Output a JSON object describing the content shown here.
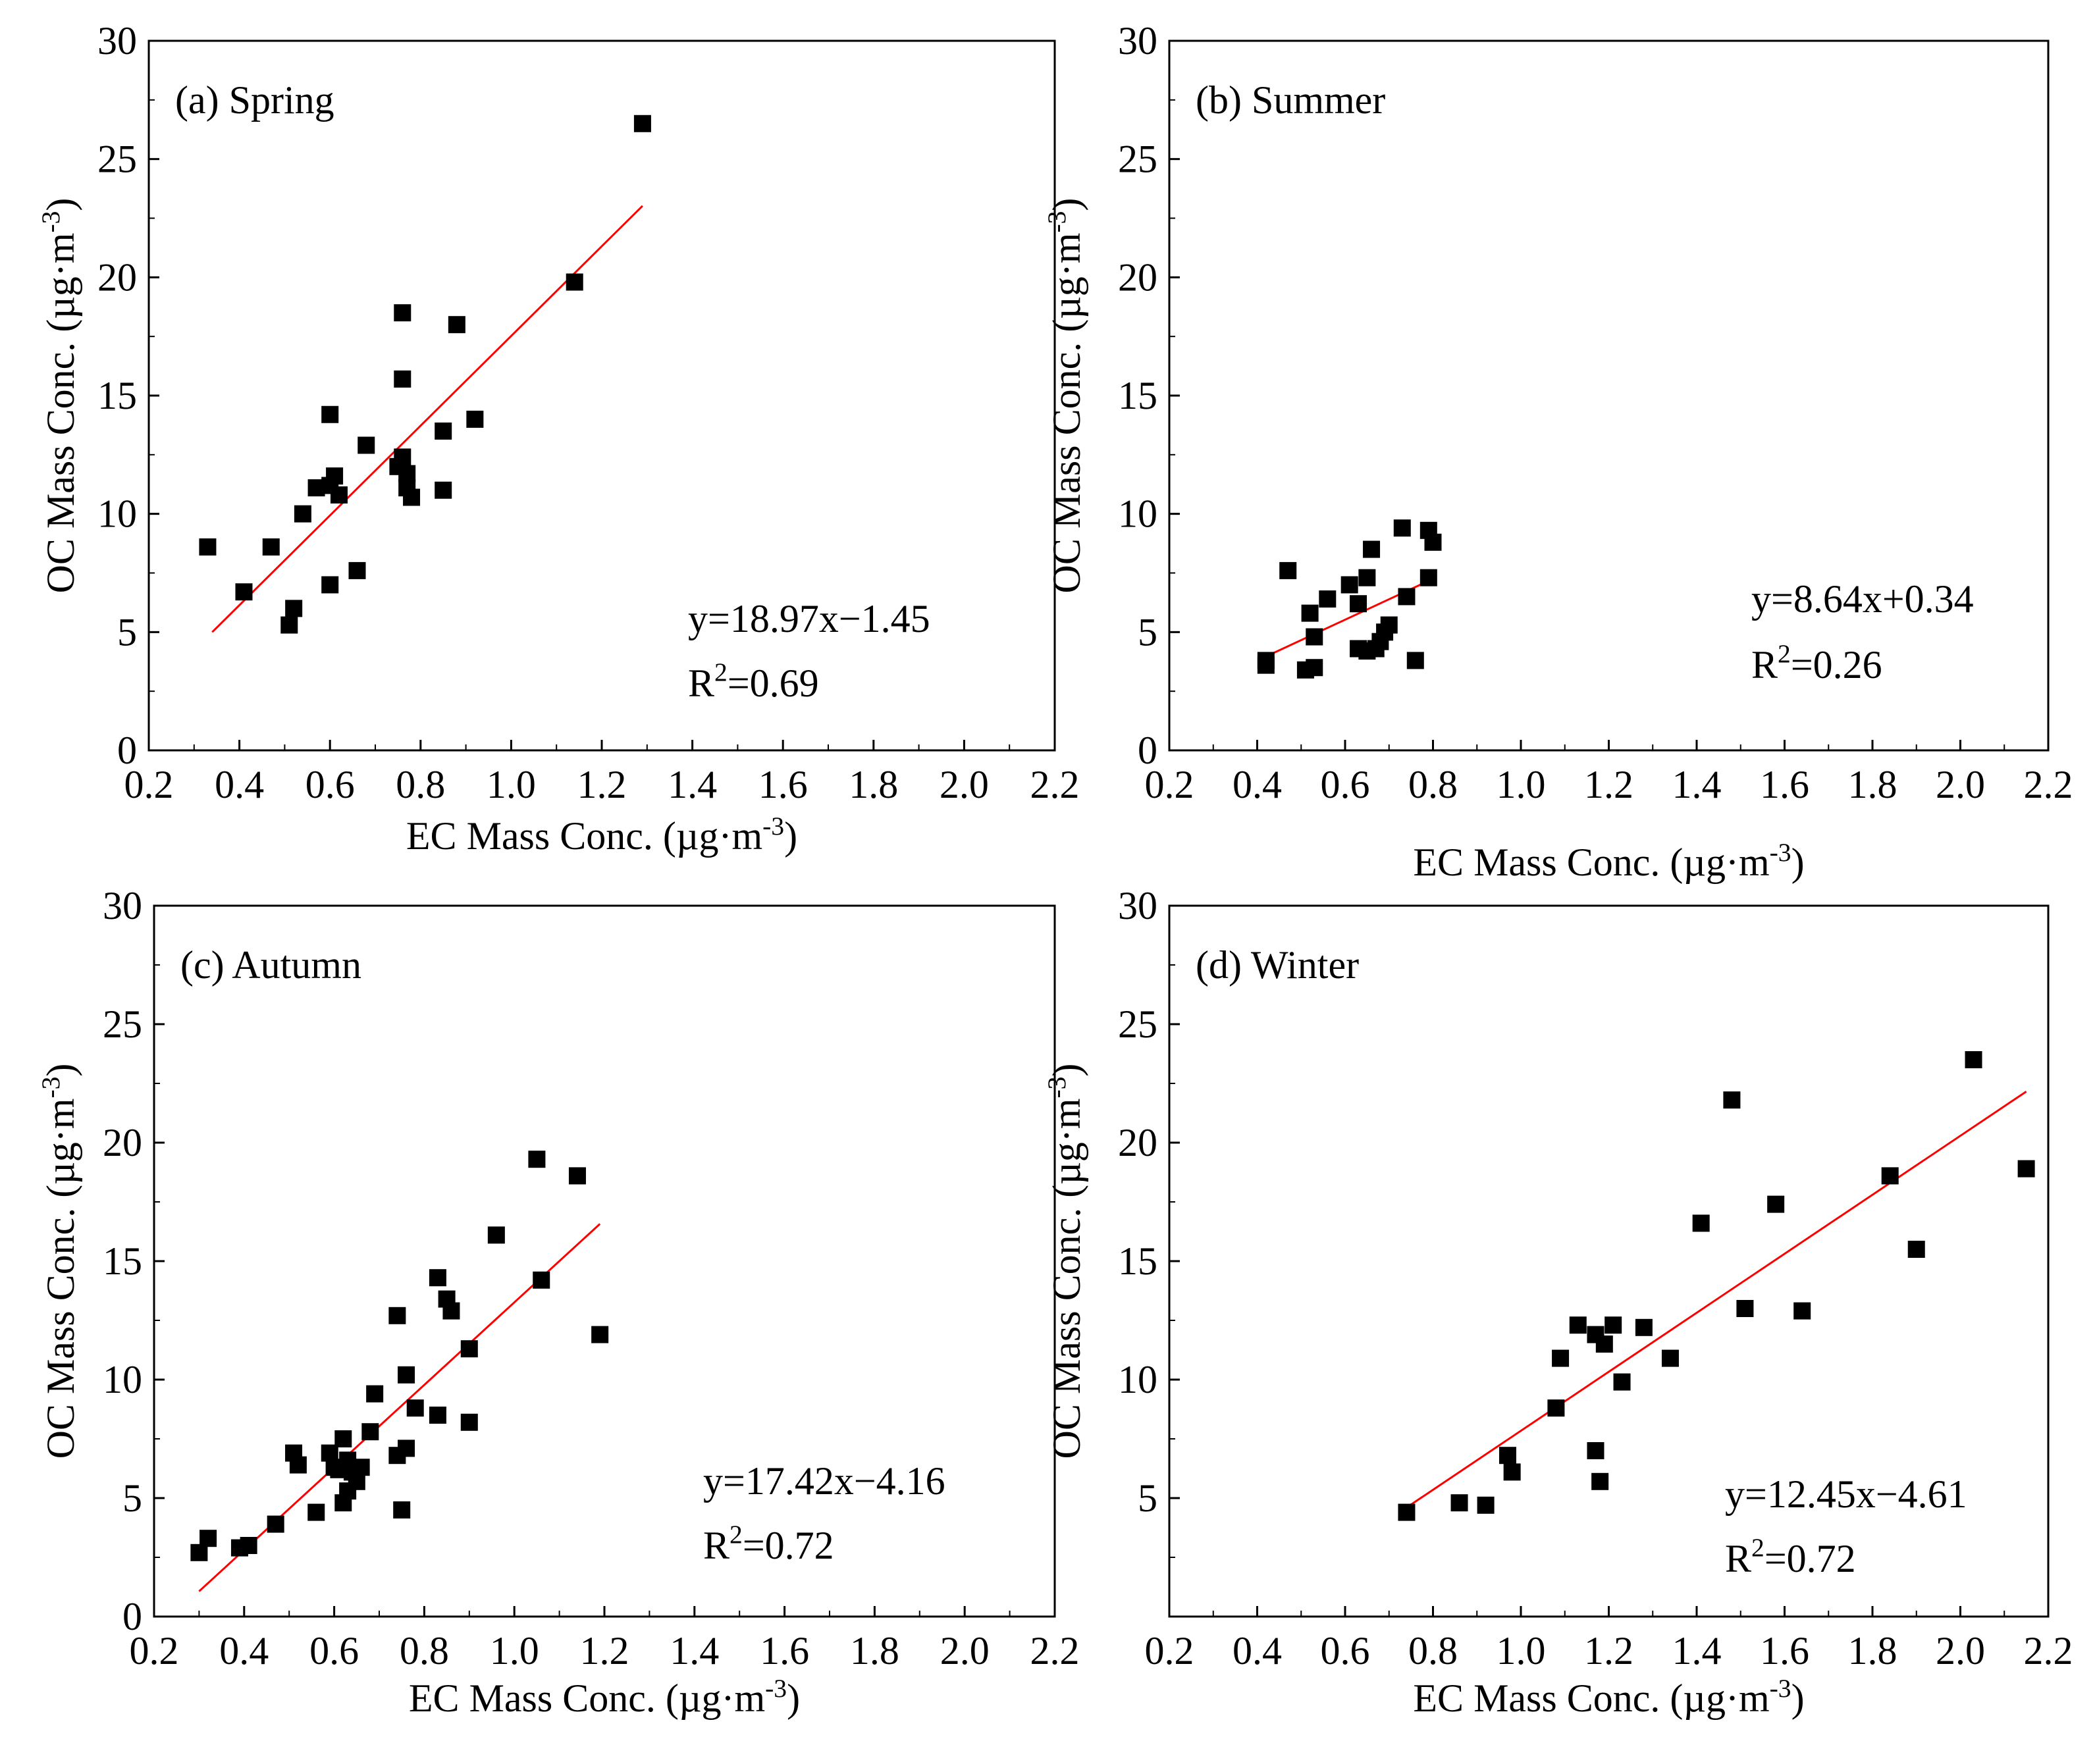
{
  "page": {
    "panel_labels": [
      "(a) Spring",
      "(b) Summer",
      "(c) Autumn",
      "(d) Winter"
    ]
  },
  "colors": {
    "points": "#000000",
    "fit_line": "#ff0000",
    "axes": "#000000"
  },
  "chart_data": [
    {
      "type": "scatter",
      "panel": "(a) Spring",
      "xlabel": "EC Mass Conc. (µg·m⁻³)",
      "ylabel": "OC Mass Conc. (µg·m⁻³)",
      "xlim": [
        0.2,
        2.2
      ],
      "ylim": [
        0,
        30
      ],
      "xticks": [
        "0.2",
        "0.4",
        "0.6",
        "0.8",
        "1.0",
        "1.2",
        "1.4",
        "1.6",
        "1.8",
        "2.0",
        "2.2"
      ],
      "yticks": [
        "0",
        "5",
        "10",
        "15",
        "20",
        "25",
        "30"
      ],
      "grid": false,
      "equation": "y=18.97x−1.45",
      "r2_prefix": "R",
      "r2_exp": "2",
      "r2_value": "=0.69",
      "fit": {
        "slope": 18.97,
        "intercept": -1.45,
        "x_range": [
          0.34,
          1.29
        ]
      },
      "points": [
        [
          0.33,
          8.6
        ],
        [
          0.41,
          6.7
        ],
        [
          0.47,
          8.6
        ],
        [
          0.51,
          5.3
        ],
        [
          0.52,
          6.0
        ],
        [
          0.54,
          10.0
        ],
        [
          0.57,
          11.1
        ],
        [
          0.6,
          11.2
        ],
        [
          0.6,
          7.0
        ],
        [
          0.6,
          14.2
        ],
        [
          0.61,
          11.6
        ],
        [
          0.62,
          10.8
        ],
        [
          0.66,
          7.6
        ],
        [
          0.68,
          12.9
        ],
        [
          0.75,
          12.0
        ],
        [
          0.76,
          18.5
        ],
        [
          0.76,
          15.7
        ],
        [
          0.76,
          12.4
        ],
        [
          0.77,
          11.1
        ],
        [
          0.77,
          11.7
        ],
        [
          0.78,
          10.7
        ],
        [
          0.85,
          13.5
        ],
        [
          0.85,
          11.0
        ],
        [
          0.88,
          18.0
        ],
        [
          0.92,
          14.0
        ],
        [
          1.14,
          19.8
        ],
        [
          1.29,
          26.5
        ]
      ]
    },
    {
      "type": "scatter",
      "panel": "(b) Summer",
      "xlabel": "EC Mass Conc. (µg·m⁻³)",
      "ylabel": "OC Mass Conc. (µg·m⁻³)",
      "xlim": [
        0.2,
        2.2
      ],
      "ylim": [
        0,
        30
      ],
      "xticks": [
        "0.2",
        "0.4",
        "0.6",
        "0.8",
        "1.0",
        "1.2",
        "1.4",
        "1.6",
        "1.8",
        "2.0",
        "2.2"
      ],
      "yticks": [
        "0",
        "5",
        "10",
        "15",
        "20",
        "25",
        "30"
      ],
      "grid": false,
      "equation": "y=8.64x+0.34",
      "r2_prefix": "R",
      "r2_exp": "2",
      "r2_value": "=0.26",
      "fit": {
        "slope": 8.64,
        "intercept": 0.34,
        "x_range": [
          0.42,
          0.8
        ]
      },
      "points": [
        [
          0.42,
          3.8
        ],
        [
          0.42,
          3.6
        ],
        [
          0.47,
          7.6
        ],
        [
          0.51,
          3.4
        ],
        [
          0.52,
          5.8
        ],
        [
          0.53,
          3.5
        ],
        [
          0.53,
          4.8
        ],
        [
          0.56,
          6.4
        ],
        [
          0.61,
          7.0
        ],
        [
          0.63,
          4.3
        ],
        [
          0.63,
          6.2
        ],
        [
          0.65,
          4.2
        ],
        [
          0.65,
          7.3
        ],
        [
          0.66,
          8.5
        ],
        [
          0.67,
          4.3
        ],
        [
          0.68,
          4.6
        ],
        [
          0.69,
          5.0
        ],
        [
          0.7,
          5.3
        ],
        [
          0.73,
          9.4
        ],
        [
          0.74,
          6.5
        ],
        [
          0.76,
          3.8
        ],
        [
          0.79,
          9.3
        ],
        [
          0.79,
          7.3
        ],
        [
          0.8,
          8.8
        ]
      ]
    },
    {
      "type": "scatter",
      "panel": "(c) Autumn",
      "xlabel": "EC Mass Conc. (µg·m⁻³)",
      "ylabel": "OC Mass Conc. (µg·m⁻³)",
      "xlim": [
        0.2,
        2.2
      ],
      "ylim": [
        0,
        30
      ],
      "xticks": [
        "0.2",
        "0.4",
        "0.6",
        "0.8",
        "1.0",
        "1.2",
        "1.4",
        "1.6",
        "1.8",
        "2.0",
        "2.2"
      ],
      "yticks": [
        "0",
        "5",
        "10",
        "15",
        "20",
        "25",
        "30"
      ],
      "grid": false,
      "equation": "y=17.42x−4.16",
      "r2_prefix": "R",
      "r2_exp": "2",
      "r2_value": "=0.72",
      "fit": {
        "slope": 17.42,
        "intercept": -4.16,
        "x_range": [
          0.3,
          1.19
        ]
      },
      "points": [
        [
          0.3,
          2.7
        ],
        [
          0.32,
          3.3
        ],
        [
          0.39,
          2.9
        ],
        [
          0.41,
          3.0
        ],
        [
          0.47,
          3.9
        ],
        [
          0.51,
          6.9
        ],
        [
          0.52,
          6.4
        ],
        [
          0.56,
          4.4
        ],
        [
          0.59,
          6.9
        ],
        [
          0.6,
          6.3
        ],
        [
          0.61,
          6.2
        ],
        [
          0.62,
          7.5
        ],
        [
          0.62,
          4.8
        ],
        [
          0.63,
          5.3
        ],
        [
          0.63,
          6.6
        ],
        [
          0.64,
          6.1
        ],
        [
          0.65,
          5.7
        ],
        [
          0.66,
          6.3
        ],
        [
          0.68,
          7.8
        ],
        [
          0.69,
          9.4
        ],
        [
          0.74,
          12.7
        ],
        [
          0.74,
          6.8
        ],
        [
          0.75,
          4.5
        ],
        [
          0.76,
          10.2
        ],
        [
          0.76,
          7.1
        ],
        [
          0.78,
          8.8
        ],
        [
          0.83,
          14.3
        ],
        [
          0.83,
          8.5
        ],
        [
          0.85,
          13.4
        ],
        [
          0.86,
          12.9
        ],
        [
          0.9,
          11.3
        ],
        [
          0.9,
          8.2
        ],
        [
          0.96,
          16.1
        ],
        [
          1.05,
          19.3
        ],
        [
          1.06,
          14.2
        ],
        [
          1.14,
          18.6
        ],
        [
          1.19,
          11.9
        ]
      ]
    },
    {
      "type": "scatter",
      "panel": "(d) Winter",
      "xlabel": "EC Mass Conc. (µg·m⁻³)",
      "ylabel": "OC Mass Conc. (µg·m⁻³)",
      "xlim": [
        0.2,
        2.2
      ],
      "ylim": [
        0,
        30
      ],
      "xticks": [
        "0.2",
        "0.4",
        "0.6",
        "0.8",
        "1.0",
        "1.2",
        "1.4",
        "1.6",
        "1.8",
        "2.0",
        "2.2"
      ],
      "yticks": [
        "5",
        "10",
        "15",
        "20",
        "25",
        "30"
      ],
      "grid": false,
      "equation": "y=12.45x−4.61",
      "r2_prefix": "R",
      "r2_exp": "2",
      "r2_value": "=0.72",
      "fit": {
        "slope": 12.45,
        "intercept": -4.61,
        "x_range": [
          0.74,
          2.15
        ]
      },
      "points": [
        [
          0.74,
          4.4
        ],
        [
          0.86,
          4.8
        ],
        [
          0.92,
          4.7
        ],
        [
          0.97,
          6.8
        ],
        [
          0.98,
          6.1
        ],
        [
          1.08,
          8.8
        ],
        [
          1.09,
          10.9
        ],
        [
          1.13,
          12.3
        ],
        [
          1.17,
          11.9
        ],
        [
          1.17,
          7.0
        ],
        [
          1.18,
          5.7
        ],
        [
          1.19,
          11.5
        ],
        [
          1.21,
          12.3
        ],
        [
          1.23,
          9.9
        ],
        [
          1.28,
          12.2
        ],
        [
          1.34,
          10.9
        ],
        [
          1.41,
          16.6
        ],
        [
          1.48,
          21.8
        ],
        [
          1.51,
          13.0
        ],
        [
          1.58,
          17.4
        ],
        [
          1.64,
          12.9
        ],
        [
          1.84,
          18.6
        ],
        [
          1.9,
          15.5
        ],
        [
          2.03,
          23.5
        ],
        [
          2.15,
          18.9
        ]
      ]
    }
  ]
}
